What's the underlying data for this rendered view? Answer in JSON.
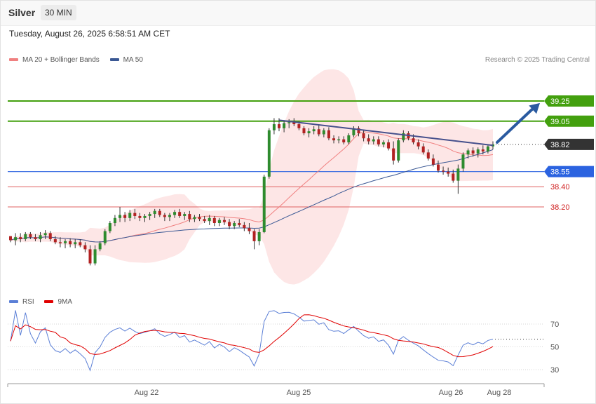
{
  "header": {
    "instrument": "Silver",
    "timeframe": "30 MIN",
    "datetime": "Tuesday, August 26, 2025 6:58:51 AM CET"
  },
  "legend": {
    "items": [
      {
        "label": "MA 20 + Bollinger Bands",
        "color": "#f08080"
      },
      {
        "label": "MA 50",
        "color": "#3a5894"
      }
    ],
    "copyright": "Research © 2025 Trading Central"
  },
  "rsi_legend": {
    "items": [
      {
        "label": "RSI",
        "color": "#5b7fd6"
      },
      {
        "label": "9MA",
        "color": "#e00000"
      }
    ]
  },
  "colors": {
    "up": "#2e8b2e",
    "down": "#b22222",
    "resistance": "#43a00e",
    "support_blue": "#2b63e0",
    "support_red": "#e06060",
    "current": "#333333",
    "arrow": "#2a5aa0"
  },
  "chart_data": [
    {
      "type": "candlestick",
      "x_ticks": [
        "Aug 22",
        "Aug 25",
        "Aug 26",
        "Aug 28"
      ],
      "y_range": [
        37.63,
        39.61
      ],
      "levels": [
        {
          "value": 39.25,
          "label": "39.25",
          "kind": "resistance"
        },
        {
          "value": 39.05,
          "label": "39.05",
          "kind": "resistance"
        },
        {
          "value": 38.82,
          "label": "38.82",
          "kind": "current"
        },
        {
          "value": 38.55,
          "label": "38.55",
          "kind": "support"
        },
        {
          "value": 38.4,
          "label": "38.40",
          "kind": "support-minor"
        },
        {
          "value": 38.2,
          "label": "38.20",
          "kind": "support-minor"
        }
      ],
      "series": [
        {
          "name": "MA 20 + Bollinger Bands"
        },
        {
          "name": "MA 50"
        }
      ],
      "candles": [
        [
          37.91,
          37.91,
          37.85,
          37.87
        ],
        [
          37.87,
          37.94,
          37.82,
          37.9
        ],
        [
          37.9,
          37.94,
          37.85,
          37.88
        ],
        [
          37.88,
          37.95,
          37.86,
          37.93
        ],
        [
          37.93,
          37.95,
          37.88,
          37.9
        ],
        [
          37.9,
          37.93,
          37.86,
          37.88
        ],
        [
          37.88,
          37.95,
          37.85,
          37.92
        ],
        [
          37.92,
          37.97,
          37.88,
          37.94
        ],
        [
          37.94,
          37.96,
          37.86,
          37.88
        ],
        [
          37.88,
          37.91,
          37.83,
          37.85
        ],
        [
          37.85,
          37.9,
          37.8,
          37.84
        ],
        [
          37.84,
          37.88,
          37.79,
          37.86
        ],
        [
          37.86,
          37.89,
          37.8,
          37.83
        ],
        [
          37.83,
          37.88,
          37.79,
          37.85
        ],
        [
          37.85,
          37.88,
          37.8,
          37.82
        ],
        [
          37.82,
          37.85,
          37.75,
          37.78
        ],
        [
          37.78,
          37.82,
          37.62,
          37.64
        ],
        [
          37.64,
          37.82,
          37.62,
          37.78
        ],
        [
          37.78,
          37.86,
          37.76,
          37.84
        ],
        [
          37.84,
          37.98,
          37.82,
          37.96
        ],
        [
          37.96,
          38.06,
          37.94,
          38.04
        ],
        [
          38.04,
          38.12,
          38.01,
          38.09
        ],
        [
          38.09,
          38.2,
          38.05,
          38.12
        ],
        [
          38.12,
          38.15,
          38.05,
          38.09
        ],
        [
          38.09,
          38.17,
          38.06,
          38.14
        ],
        [
          38.14,
          38.18,
          38.08,
          38.11
        ],
        [
          38.11,
          38.14,
          38.06,
          38.09
        ],
        [
          38.09,
          38.13,
          38.05,
          38.11
        ],
        [
          38.11,
          38.15,
          38.07,
          38.13
        ],
        [
          38.13,
          38.18,
          38.09,
          38.16
        ],
        [
          38.16,
          38.18,
          38.1,
          38.12
        ],
        [
          38.12,
          38.14,
          38.06,
          38.1
        ],
        [
          38.1,
          38.14,
          38.06,
          38.12
        ],
        [
          38.12,
          38.17,
          38.09,
          38.15
        ],
        [
          38.15,
          38.18,
          38.09,
          38.11
        ],
        [
          38.11,
          38.15,
          38.07,
          38.13
        ],
        [
          38.13,
          38.16,
          38.05,
          38.08
        ],
        [
          38.08,
          38.12,
          38.05,
          38.1
        ],
        [
          38.1,
          38.13,
          38.06,
          38.08
        ],
        [
          38.08,
          38.11,
          38.04,
          38.06
        ],
        [
          38.06,
          38.12,
          38.02,
          38.09
        ],
        [
          38.09,
          38.11,
          38.01,
          38.04
        ],
        [
          38.04,
          38.09,
          38.01,
          38.07
        ],
        [
          38.07,
          38.1,
          38.02,
          38.05
        ],
        [
          38.05,
          38.08,
          37.98,
          38.01
        ],
        [
          38.01,
          38.06,
          37.98,
          38.04
        ],
        [
          38.04,
          38.08,
          38.0,
          38.02
        ],
        [
          38.02,
          38.05,
          37.96,
          37.99
        ],
        [
          37.99,
          38.04,
          37.93,
          37.96
        ],
        [
          37.96,
          37.98,
          37.78,
          37.86
        ],
        [
          37.86,
          37.98,
          37.82,
          37.95
        ],
        [
          37.95,
          38.52,
          37.94,
          38.5
        ],
        [
          38.5,
          38.98,
          38.48,
          38.96
        ],
        [
          38.96,
          39.08,
          38.92,
          39.02
        ],
        [
          39.02,
          39.08,
          38.95,
          38.98
        ],
        [
          38.98,
          39.06,
          38.94,
          39.03
        ],
        [
          39.03,
          39.07,
          38.98,
          39.04
        ],
        [
          39.04,
          39.08,
          39.0,
          39.02
        ],
        [
          39.02,
          39.05,
          38.96,
          38.98
        ],
        [
          38.98,
          39.0,
          38.91,
          38.93
        ],
        [
          38.93,
          38.98,
          38.89,
          38.95
        ],
        [
          38.95,
          39.0,
          38.92,
          38.97
        ],
        [
          38.97,
          39.01,
          38.9,
          38.92
        ],
        [
          38.92,
          38.98,
          38.89,
          38.96
        ],
        [
          38.96,
          38.99,
          38.86,
          38.88
        ],
        [
          38.88,
          38.91,
          38.83,
          38.86
        ],
        [
          38.86,
          38.9,
          38.83,
          38.87
        ],
        [
          38.87,
          38.9,
          38.82,
          38.84
        ],
        [
          38.84,
          38.93,
          38.82,
          38.91
        ],
        [
          38.91,
          39.0,
          38.89,
          38.98
        ],
        [
          38.98,
          39.0,
          38.9,
          38.93
        ],
        [
          38.93,
          38.96,
          38.85,
          38.88
        ],
        [
          38.88,
          38.92,
          38.82,
          38.85
        ],
        [
          38.85,
          38.9,
          38.82,
          38.87
        ],
        [
          38.87,
          38.9,
          38.8,
          38.82
        ],
        [
          38.82,
          38.86,
          38.79,
          38.84
        ],
        [
          38.84,
          38.87,
          38.76,
          38.78
        ],
        [
          38.78,
          38.85,
          38.62,
          38.66
        ],
        [
          38.66,
          38.88,
          38.64,
          38.86
        ],
        [
          38.86,
          38.96,
          38.84,
          38.93
        ],
        [
          38.93,
          38.95,
          38.86,
          38.88
        ],
        [
          38.88,
          38.92,
          38.82,
          38.84
        ],
        [
          38.84,
          38.87,
          38.77,
          38.8
        ],
        [
          38.8,
          38.83,
          38.72,
          38.74
        ],
        [
          38.74,
          38.77,
          38.66,
          38.68
        ],
        [
          38.68,
          38.72,
          38.6,
          38.62
        ],
        [
          38.62,
          38.66,
          38.54,
          38.56
        ],
        [
          38.56,
          38.6,
          38.52,
          38.55
        ],
        [
          38.55,
          38.59,
          38.5,
          38.53
        ],
        [
          38.53,
          38.57,
          38.44,
          38.46
        ],
        [
          38.46,
          38.62,
          38.33,
          38.58
        ],
        [
          38.58,
          38.74,
          38.55,
          38.72
        ],
        [
          38.72,
          38.78,
          38.68,
          38.76
        ],
        [
          38.76,
          38.79,
          38.7,
          38.73
        ],
        [
          38.73,
          38.79,
          38.69,
          38.77
        ],
        [
          38.77,
          38.81,
          38.72,
          38.75
        ],
        [
          38.75,
          38.81,
          38.73,
          38.8
        ],
        [
          38.8,
          38.85,
          38.77,
          38.82
        ]
      ]
    },
    {
      "type": "line",
      "title": "RSI",
      "y_ticks": [
        70,
        50,
        30
      ],
      "series": [
        {
          "name": "RSI"
        },
        {
          "name": "9MA"
        }
      ]
    }
  ]
}
